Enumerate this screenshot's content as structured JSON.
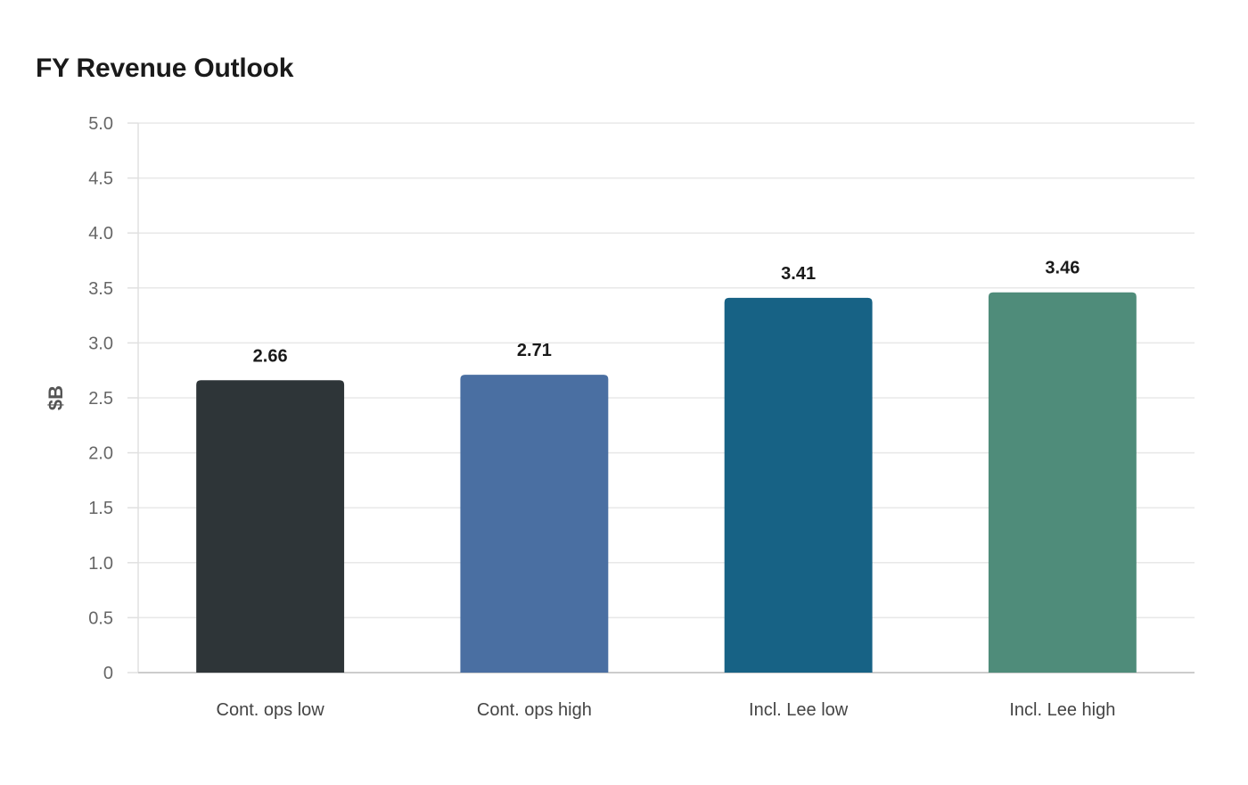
{
  "chart_data": {
    "type": "bar",
    "title": "FY Revenue Outlook",
    "xlabel": "",
    "ylabel": "$B",
    "categories": [
      "Cont. ops low",
      "Cont. ops high",
      "Incl. Lee low",
      "Incl. Lee high"
    ],
    "values": [
      2.66,
      2.71,
      3.41,
      3.46
    ],
    "value_labels": [
      "2.66",
      "2.71",
      "3.41",
      "3.46"
    ],
    "colors": [
      "#2e3538",
      "#4a6fa2",
      "#176285",
      "#4f8c7a"
    ],
    "ylim": [
      0,
      5
    ],
    "yticks": [
      0,
      0.5,
      1,
      1.5,
      2,
      2.5,
      3,
      3.5,
      4,
      4.5,
      5
    ],
    "ytick_labels": [
      "0",
      "0.5",
      "1.0",
      "1.5",
      "2.0",
      "2.5",
      "3.0",
      "3.5",
      "4.0",
      "4.5",
      "5.0"
    ],
    "grid": true,
    "legend": "none"
  }
}
